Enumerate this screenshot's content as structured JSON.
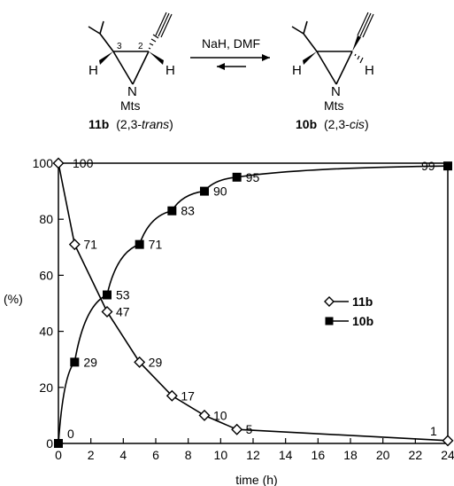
{
  "scheme": {
    "reagent": "NaH, DMF",
    "left": {
      "atoms": {
        "h_left": "H",
        "h_right": "H",
        "n": "N",
        "ms": "Mts",
        "c3": "3",
        "c2": "2"
      },
      "id": "11b",
      "descriptor_prefix": "(2,3-",
      "descriptor_italic": "trans",
      "descriptor_suffix": ")"
    },
    "right": {
      "atoms": {
        "h_left": "H",
        "h_right": "H",
        "n": "N",
        "ms": "Mts"
      },
      "id": "10b",
      "descriptor_prefix": "(2,3-",
      "descriptor_italic": "cis",
      "descriptor_suffix": ")"
    }
  },
  "chart_data": {
    "type": "line",
    "xlabel": "time (h)",
    "ylabel": "(%)",
    "xlim": [
      0,
      24
    ],
    "ylim": [
      0,
      100
    ],
    "xticks": [
      0,
      2,
      4,
      6,
      8,
      10,
      12,
      14,
      16,
      18,
      20,
      22,
      24
    ],
    "yticks": [
      0,
      20,
      40,
      60,
      80,
      100
    ],
    "grid": false,
    "legend": "middle-right",
    "series": [
      {
        "name": "11b",
        "marker": "open-diamond",
        "x": [
          0,
          1,
          3,
          5,
          7,
          9,
          11,
          24
        ],
        "y": [
          100,
          71,
          47,
          29,
          17,
          10,
          5,
          1
        ],
        "labels": [
          "100",
          "71",
          "47",
          "29",
          "17",
          "10",
          "5",
          "1"
        ]
      },
      {
        "name": "10b",
        "marker": "filled-square",
        "x": [
          0,
          1,
          3,
          5,
          7,
          9,
          11,
          24
        ],
        "y": [
          0,
          29,
          53,
          71,
          83,
          90,
          95,
          99
        ],
        "labels": [
          "0",
          "29",
          "53",
          "71",
          "83",
          "90",
          "95",
          "99"
        ]
      }
    ],
    "colors": {
      "line": "#000000",
      "background": "#ffffff"
    }
  }
}
